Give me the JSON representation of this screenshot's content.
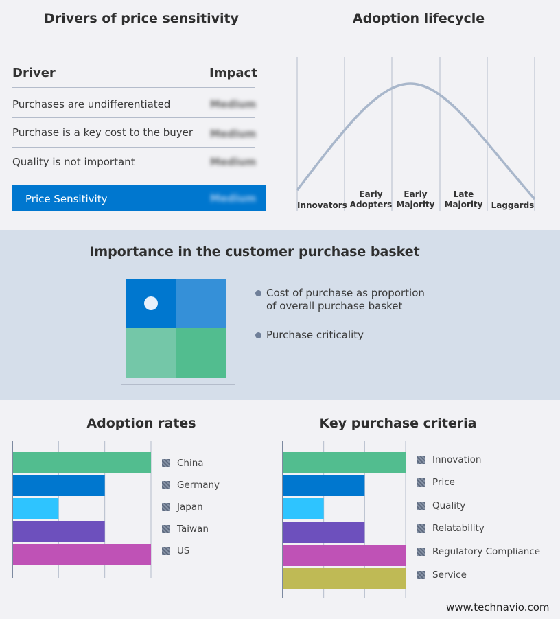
{
  "drivers": {
    "title": "Drivers of price sensitivity",
    "col_driver": "Driver",
    "col_impact": "Impact",
    "rows": [
      {
        "driver": "Purchases are undifferentiated",
        "impact": "Medium"
      },
      {
        "driver": "Purchase is a key cost to the buyer",
        "impact": "Medium"
      },
      {
        "driver": "Quality is not important",
        "impact": "Medium"
      }
    ],
    "summary": {
      "label": "Price Sensitivity",
      "impact": "Medium"
    },
    "accent": "#0077cf"
  },
  "lifecycle": {
    "title": "Adoption lifecycle",
    "stages": [
      "Innovators",
      "Early Adopters",
      "Early Majority",
      "Late Majority",
      "Laggards"
    ]
  },
  "basket": {
    "title": "Importance in the customer purchase basket",
    "legend": [
      "Cost of purchase as proportion of overall purchase basket",
      "Purchase criticality"
    ],
    "colors": [
      "#0077cf",
      "#3590d8",
      "#74c7a8",
      "#52bd8f"
    ]
  },
  "chart_data": [
    {
      "type": "bar",
      "title": "Adoption rates",
      "orientation": "horizontal",
      "categories": [
        "China",
        "Germany",
        "Japan",
        "Taiwan",
        "US"
      ],
      "values": [
        3,
        2,
        1,
        2,
        3
      ],
      "xlim": [
        0,
        3
      ],
      "grid": true,
      "legend": "right",
      "colors": [
        "#52bd8f",
        "#0077cf",
        "#2ec4ff",
        "#6d50bd",
        "#bf52b6"
      ]
    },
    {
      "type": "bar",
      "title": "Key purchase criteria",
      "orientation": "horizontal",
      "categories": [
        "Innovation",
        "Price",
        "Quality",
        "Relatability",
        "Regulatory Compliance",
        "Service"
      ],
      "values": [
        3,
        2,
        1,
        2,
        3,
        3
      ],
      "xlim": [
        0,
        3
      ],
      "grid": true,
      "legend": "right",
      "colors": [
        "#52bd8f",
        "#0077cf",
        "#2ec4ff",
        "#6d50bd",
        "#bf52b6",
        "#bfba55"
      ]
    }
  ],
  "footer": "www.technavio.com"
}
